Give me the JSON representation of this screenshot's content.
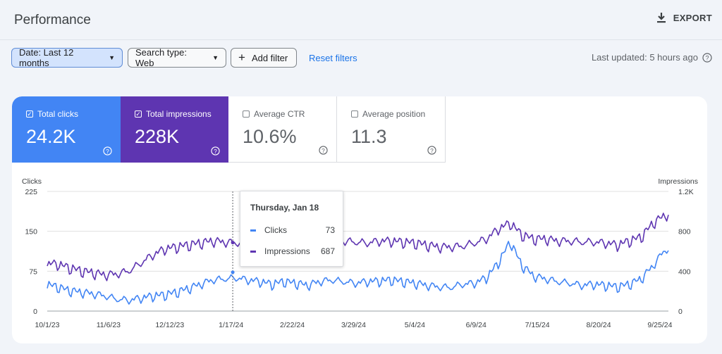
{
  "header": {
    "title": "Performance",
    "export_label": "EXPORT"
  },
  "toolbar": {
    "date_filter": "Date: Last 12 months",
    "search_type": "Search type: Web",
    "add_filter": "Add filter",
    "reset": "Reset filters",
    "last_updated": "Last updated: 5 hours ago"
  },
  "metrics": [
    {
      "label": "Total clicks",
      "value": "24.2K",
      "checked": true
    },
    {
      "label": "Total impressions",
      "value": "228K",
      "checked": true
    },
    {
      "label": "Average CTR",
      "value": "10.6%",
      "checked": false
    },
    {
      "label": "Average position",
      "value": "11.3",
      "checked": false
    }
  ],
  "colors": {
    "clicks": "#4285f4",
    "impressions": "#5e35b1"
  },
  "tooltip": {
    "date": "Thursday, Jan 18",
    "clicks_label": "Clicks",
    "clicks_value": "73",
    "impressions_label": "Impressions",
    "impressions_value": "687"
  },
  "chart_data": {
    "type": "line",
    "ylabel_left": "Clicks",
    "ylabel_right": "Impressions",
    "y_left_ticks": [
      "225",
      "150",
      "75",
      "0"
    ],
    "y_right_ticks": [
      "1.2K",
      "800",
      "400",
      "0"
    ],
    "ylim_left": [
      0,
      225
    ],
    "ylim_right": [
      0,
      1200
    ],
    "x_tick_labels": [
      "10/1/23",
      "11/6/23",
      "12/12/23",
      "1/17/24",
      "2/22/24",
      "3/29/24",
      "5/4/24",
      "6/9/24",
      "7/15/24",
      "8/20/24",
      "9/25/24"
    ],
    "weekly_x_dates": [
      "9/30/23",
      "10/7/23",
      "10/14/23",
      "10/21/23",
      "10/28/23",
      "11/4/23",
      "11/11/23",
      "11/18/23",
      "11/25/23",
      "12/2/23",
      "12/9/23",
      "12/16/23",
      "12/23/23",
      "12/30/23",
      "1/6/24",
      "1/13/24",
      "1/20/24",
      "1/27/24",
      "2/3/24",
      "2/10/24",
      "2/17/24",
      "2/24/24",
      "3/2/24",
      "3/9/24",
      "3/16/24",
      "3/23/24",
      "3/30/24",
      "4/6/24",
      "4/13/24",
      "4/20/24",
      "4/27/24",
      "5/4/24",
      "5/11/24",
      "5/18/24",
      "5/25/24",
      "6/1/24",
      "6/8/24",
      "6/15/24",
      "6/22/24",
      "6/29/24",
      "7/6/24",
      "7/13/24",
      "7/20/24",
      "7/27/24",
      "8/3/24",
      "8/10/24",
      "8/17/24",
      "8/24/24",
      "8/31/24",
      "9/7/24",
      "9/14/24",
      "9/21/24",
      "9/28/24"
    ],
    "series": [
      {
        "name": "Clicks",
        "axis": "left",
        "values": [
          50,
          45,
          38,
          35,
          32,
          28,
          22,
          20,
          24,
          28,
          30,
          35,
          42,
          50,
          58,
          60,
          62,
          58,
          55,
          50,
          55,
          52,
          48,
          55,
          58,
          55,
          52,
          55,
          56,
          58,
          55,
          52,
          48,
          45,
          44,
          50,
          52,
          62,
          90,
          130,
          85,
          65,
          60,
          55,
          52,
          48,
          50,
          48,
          45,
          50,
          60,
          85,
          115
        ]
      },
      {
        "name": "Impressions",
        "axis": "right",
        "values": [
          470,
          470,
          430,
          400,
          380,
          360,
          370,
          400,
          480,
          560,
          620,
          640,
          660,
          680,
          700,
          690,
          680,
          690,
          700,
          680,
          690,
          700,
          680,
          700,
          720,
          700,
          690,
          680,
          700,
          700,
          690,
          680,
          660,
          640,
          640,
          650,
          680,
          720,
          820,
          880,
          760,
          720,
          720,
          700,
          700,
          690,
          690,
          680,
          660,
          700,
          740,
          880,
          960
        ]
      }
    ],
    "highlight": {
      "x": "1/18/24",
      "clicks": 73,
      "impressions": 687
    }
  }
}
